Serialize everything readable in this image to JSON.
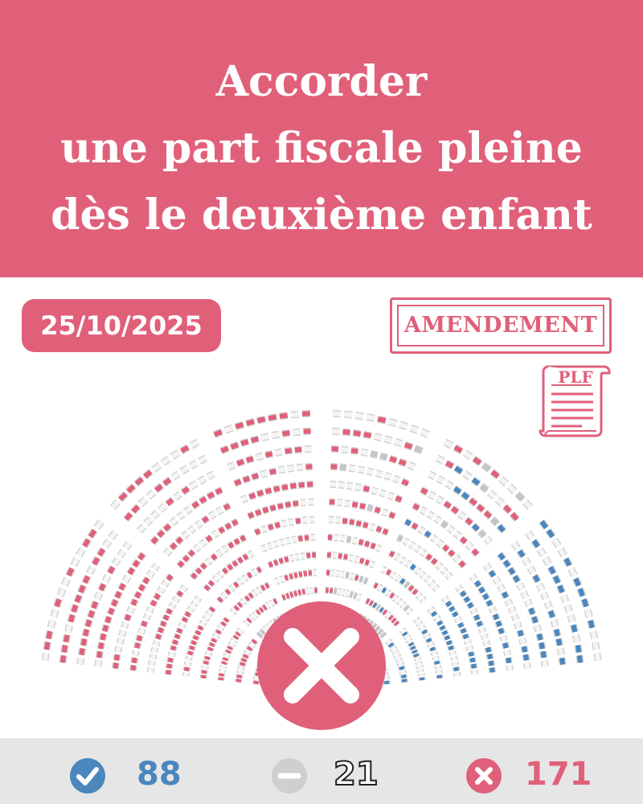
{
  "title": {
    "line1": "Accorder",
    "line2": "une part fiscale pleine",
    "line3": "dès le deuxième enfant"
  },
  "vote_date": "25/10/2025",
  "stamp": {
    "label": "AMENDEMENT"
  },
  "document": {
    "label": "PLF",
    "icon": "scroll-document-icon"
  },
  "result": {
    "icon": "rejected-x-icon",
    "color": "#e0607a"
  },
  "tally": {
    "for": {
      "count": "88",
      "icon": "check-circle-icon",
      "color": "#4b86bd"
    },
    "abstain": {
      "count": "21",
      "icon": "minus-circle-icon",
      "color": "#cfcfcf"
    },
    "against": {
      "count": "171",
      "icon": "x-circle-icon",
      "color": "#e0607a"
    }
  },
  "colors": {
    "brand": "#e0607a",
    "for": "#4b86bd",
    "abstain": "#c2c6ca",
    "seat_empty": "#eaeaea",
    "seat_outline": "#d2d2d2"
  }
}
